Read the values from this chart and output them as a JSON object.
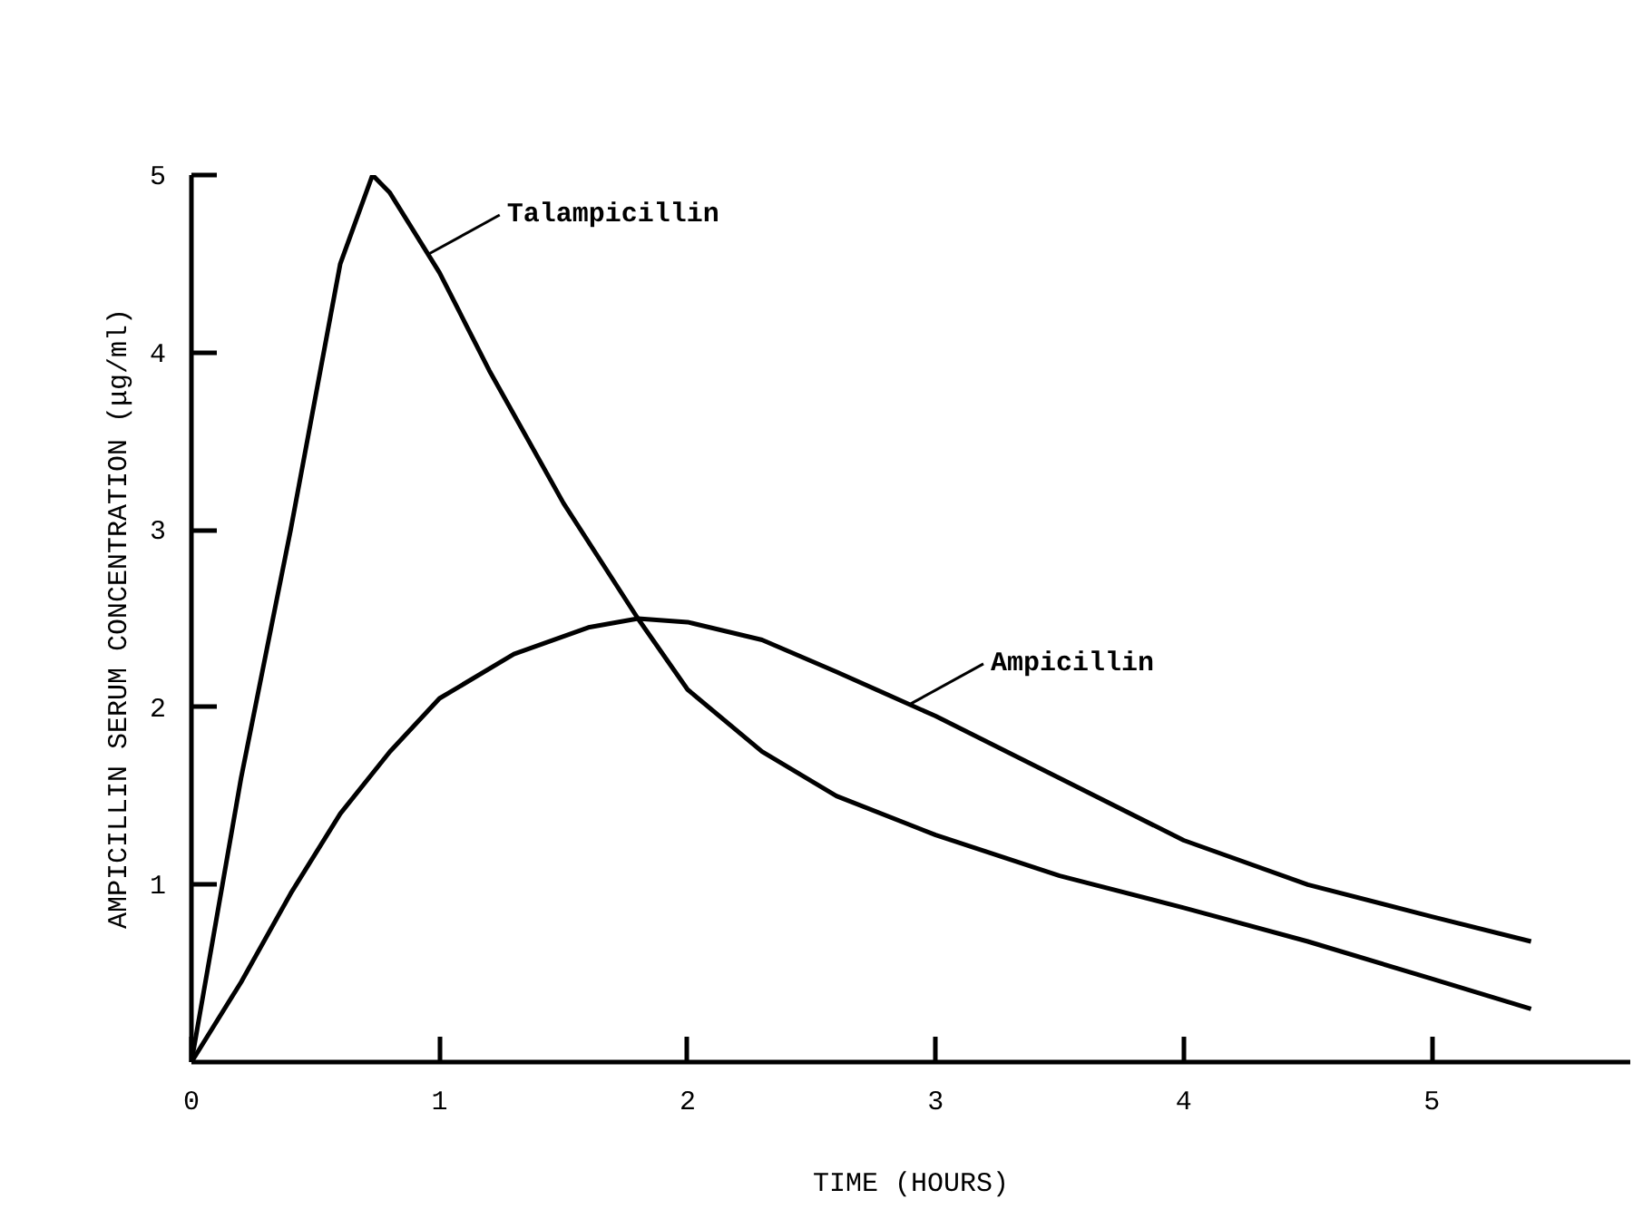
{
  "chart_data": {
    "type": "line",
    "xlabel": "TIME (HOURS)",
    "ylabel": "AMPICILLIN SERUM CONCENTRATION (μg/ml)",
    "xlim": [
      0,
      5.8
    ],
    "ylim": [
      0,
      5
    ],
    "xticks": [
      0,
      1,
      2,
      3,
      4,
      5
    ],
    "yticks": [
      1,
      2,
      3,
      4,
      5
    ],
    "grid": false,
    "marker": "none",
    "line_style": "solid",
    "series": [
      {
        "color": "#000000",
        "x": [
          0,
          0.2,
          0.4,
          0.6,
          0.73,
          0.8,
          1.0,
          1.2,
          1.5,
          1.8,
          2.0,
          2.3,
          2.6,
          3.0,
          3.5,
          4.0,
          4.5,
          5.0,
          5.4
        ],
        "values": [
          0,
          1.6,
          3.0,
          4.5,
          5.0,
          4.9,
          4.45,
          3.9,
          3.15,
          2.5,
          2.1,
          1.75,
          1.5,
          1.28,
          1.05,
          0.87,
          0.68,
          0.47,
          0.3
        ]
      },
      {
        "color": "#000000",
        "x": [
          0,
          0.2,
          0.4,
          0.6,
          0.8,
          1.0,
          1.3,
          1.6,
          1.8,
          2.0,
          2.3,
          2.6,
          3.0,
          3.5,
          4.0,
          4.5,
          5.0,
          5.4
        ],
        "values": [
          0,
          0.45,
          0.95,
          1.4,
          1.75,
          2.05,
          2.3,
          2.45,
          2.5,
          2.48,
          2.38,
          2.2,
          1.95,
          1.6,
          1.25,
          1.0,
          0.82,
          0.68
        ]
      }
    ],
    "annotations": [
      {
        "text": "Talampicillin",
        "x": 0.95,
        "y": 4.55
      },
      {
        "text": "Ampicillin",
        "x": 2.9,
        "y": 2.02
      }
    ]
  }
}
